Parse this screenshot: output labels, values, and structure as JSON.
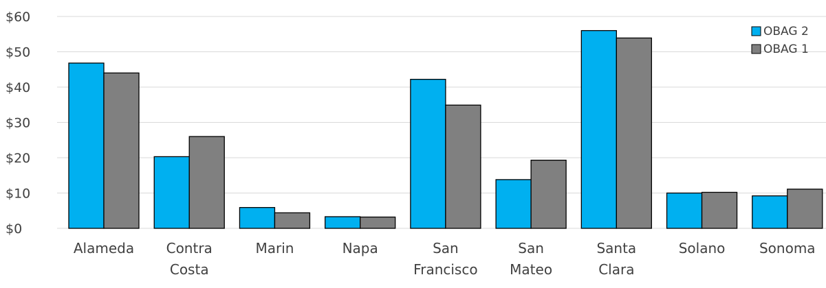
{
  "chart_data": {
    "type": "bar",
    "categories": [
      "Alameda",
      "Contra Costa",
      "Marin",
      "Napa",
      "San Francisco",
      "San Mateo",
      "Santa Clara",
      "Solano",
      "Sonoma"
    ],
    "category_lines": [
      [
        "Alameda"
      ],
      [
        "Contra",
        "Costa"
      ],
      [
        "Marin"
      ],
      [
        "Napa"
      ],
      [
        "San",
        "Francisco"
      ],
      [
        "San",
        "Mateo"
      ],
      [
        "Santa",
        "Clara"
      ],
      [
        "Solano"
      ],
      [
        "Sonoma"
      ]
    ],
    "series": [
      {
        "name": "OBAG 2",
        "color": "#00b0f0",
        "values": [
          46.8,
          20.3,
          5.9,
          3.3,
          42.2,
          13.8,
          56.0,
          10.0,
          9.2
        ]
      },
      {
        "name": "OBAG 1",
        "color": "#808080",
        "values": [
          44.0,
          26.0,
          4.4,
          3.2,
          34.9,
          19.3,
          53.9,
          10.2,
          11.1
        ]
      }
    ],
    "y_ticks": [
      0,
      10,
      20,
      30,
      40,
      50,
      60
    ],
    "y_tick_labels": [
      "$0",
      "$10",
      "$20",
      "$30",
      "$40",
      "$50",
      "$60"
    ],
    "ylim": [
      0,
      60
    ],
    "legend_placement": "top-right",
    "legend_order": [
      0,
      1
    ],
    "grid": true
  }
}
